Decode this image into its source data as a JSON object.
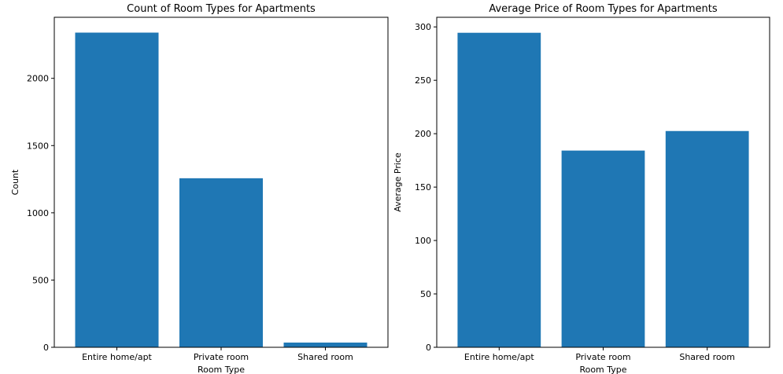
{
  "chart_data": [
    {
      "type": "bar",
      "title": "Count of Room Types for Apartments",
      "xlabel": "Room Type",
      "ylabel": "Count",
      "categories": [
        "Entire home/apt",
        "Private room",
        "Shared room"
      ],
      "values": [
        2340,
        1257,
        35
      ],
      "ylim": [
        0,
        2454
      ],
      "yticks": [
        0,
        500,
        1000,
        1500,
        2000
      ],
      "color": "#1f77b4",
      "grid": false
    },
    {
      "type": "bar",
      "title": "Average Price of Room Types for Apartments",
      "xlabel": "Room Type",
      "ylabel": "Average Price",
      "categories": [
        "Entire home/apt",
        "Private room",
        "Shared room"
      ],
      "values": [
        294.5,
        184.2,
        202.5
      ],
      "ylim": [
        0,
        309
      ],
      "yticks": [
        0,
        50,
        100,
        150,
        200,
        250,
        300
      ],
      "color": "#1f77b4",
      "grid": false
    }
  ]
}
